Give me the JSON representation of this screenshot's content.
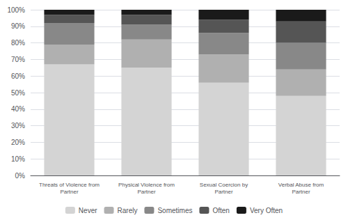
{
  "chart_data": {
    "type": "bar",
    "stacked": true,
    "categories": [
      "Threats of Violence from\nPartner",
      "Physical Violence from\nPartner",
      "Sexual Coercion by\nPartner",
      "Verbal Abuse from\nPartner"
    ],
    "series": [
      {
        "name": "Never",
        "color": "#d4d4d4",
        "values": [
          67,
          65,
          56,
          48
        ]
      },
      {
        "name": "Rarely",
        "color": "#b0b0b0",
        "values": [
          12,
          17,
          17,
          16
        ]
      },
      {
        "name": "Sometimes",
        "color": "#888888",
        "values": [
          13,
          9,
          13,
          16
        ]
      },
      {
        "name": "Often",
        "color": "#555555",
        "values": [
          5,
          6,
          8,
          13
        ]
      },
      {
        "name": "Very Often",
        "color": "#1a1a1a",
        "values": [
          3,
          3,
          6,
          7
        ]
      }
    ],
    "ylim": [
      0,
      100
    ],
    "yticks": [
      {
        "value": 0,
        "label": "0%"
      },
      {
        "value": 10,
        "label": "10%"
      },
      {
        "value": 20,
        "label": "20%"
      },
      {
        "value": 30,
        "label": "30%"
      },
      {
        "value": 40,
        "label": "40%"
      },
      {
        "value": 50,
        "label": "50%"
      },
      {
        "value": 60,
        "label": "60%"
      },
      {
        "value": 70,
        "label": "70%"
      },
      {
        "value": 80,
        "label": "80%"
      },
      {
        "value": 90,
        "label": "90%"
      },
      {
        "value": 100,
        "label": "100%"
      }
    ],
    "grid": true,
    "legend": "bottom"
  }
}
